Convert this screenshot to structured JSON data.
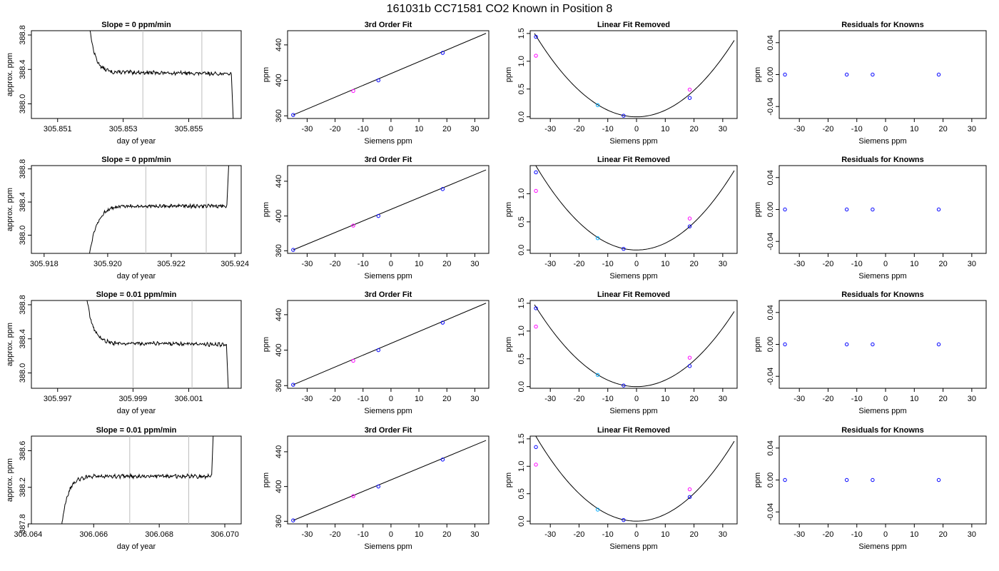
{
  "title": "161031b      CC71581    CO2 Known in Position  8",
  "chart_data": [
    {
      "type": "line",
      "panel": "timeseries",
      "title": "Slope =  0  ppm/min",
      "xlabel": "day of year",
      "ylabel": "approx. ppm",
      "xlim": [
        305.8502,
        305.8566
      ],
      "ylim": [
        387.83,
        388.85
      ],
      "xticks": [
        305.851,
        305.853,
        305.855
      ],
      "xtick_labels": [
        "305.851",
        "305.853",
        "305.855"
      ],
      "yticks": [
        388.0,
        388.4,
        388.8
      ],
      "ytick_labels": [
        "388.0",
        "388.4",
        "388.8"
      ],
      "vlines": [
        305.8536,
        305.8554
      ],
      "shape": {
        "kind": "drop",
        "x_start": 305.8519,
        "x_break": 305.8526,
        "x_end": 305.8563,
        "x_tail": 305.85637,
        "y_start": 389.2,
        "y_plateau": 388.37,
        "y_tail": 387.7,
        "slope_per_x": -6
      }
    },
    {
      "type": "line",
      "panel": "fit",
      "title": "3rd Order Fit",
      "xlabel": "Siemens ppm",
      "ylabel": "ppm",
      "xlim": [
        -37,
        35
      ],
      "ylim": [
        357,
        456
      ],
      "xticks": [
        -30,
        -20,
        -10,
        0,
        10,
        20,
        30
      ],
      "xtick_labels": [
        "-30",
        "-20",
        "-10",
        "0",
        "10",
        "20",
        "30"
      ],
      "yticks": [
        360,
        400,
        440
      ],
      "ytick_labels": [
        "360",
        "400",
        "440"
      ],
      "line": {
        "x1": -35,
        "y1": 361,
        "x2": 34,
        "y2": 453
      },
      "points": [
        {
          "x": -35,
          "y": 361,
          "color": "#0000ff"
        },
        {
          "x": -13.5,
          "y": 388,
          "color": "#ff00ff"
        },
        {
          "x": -4.5,
          "y": 400,
          "color": "#0000ff"
        },
        {
          "x": 18.5,
          "y": 431,
          "color": "#0000ff"
        }
      ]
    },
    {
      "type": "line",
      "panel": "curve",
      "title": "Linear Fit Removed",
      "xlabel": "Siemens ppm",
      "ylabel": "ppm",
      "xlim": [
        -37,
        35
      ],
      "ylim": [
        -0.03,
        1.55
      ],
      "xticks": [
        -30,
        -20,
        -10,
        0,
        10,
        20,
        30
      ],
      "xtick_labels": [
        "-30",
        "-20",
        "-10",
        "0",
        "10",
        "20",
        "30"
      ],
      "yticks": [
        0.0,
        0.5,
        1.0,
        1.5
      ],
      "ytick_labels": [
        "0.0",
        "0.5",
        "1.0",
        "1.5"
      ],
      "curve": {
        "x_min": -35.5,
        "x_max": 34,
        "a": 0.00119,
        "b": 0,
        "c": 0
      },
      "points": [
        {
          "x": -35,
          "y": 1.44,
          "color": "#0000ff"
        },
        {
          "x": -35,
          "y": 1.1,
          "color": "#ff00ff"
        },
        {
          "x": -13.5,
          "y": 0.21,
          "color": "#00aaff"
        },
        {
          "x": -4.5,
          "y": 0.02,
          "color": "#0000ff"
        },
        {
          "x": 18.5,
          "y": 0.34,
          "color": "#0000ff"
        },
        {
          "x": 18.5,
          "y": 0.49,
          "color": "#ff00ff"
        }
      ]
    },
    {
      "type": "scatter",
      "panel": "residual",
      "title": "Residuals for Knowns",
      "xlabel": "Siemens ppm",
      "ylabel": "ppm",
      "xlim": [
        -37,
        35
      ],
      "ylim": [
        -0.055,
        0.055
      ],
      "xticks": [
        -30,
        -20,
        -10,
        0,
        10,
        20,
        30
      ],
      "xtick_labels": [
        "-30",
        "-20",
        "-10",
        "0",
        "10",
        "20",
        "30"
      ],
      "yticks": [
        -0.04,
        0.0,
        0.04
      ],
      "ytick_labels": [
        "-0.04",
        "0.00",
        "0.04"
      ],
      "points": [
        {
          "x": -35,
          "y": 0,
          "color": "#0000ff"
        },
        {
          "x": -13.5,
          "y": 0,
          "color": "#0000ff"
        },
        {
          "x": -4.5,
          "y": 0,
          "color": "#0000ff"
        },
        {
          "x": 18.5,
          "y": 0,
          "color": "#0000ff"
        }
      ]
    },
    {
      "type": "line",
      "panel": "timeseries",
      "title": "Slope =  0  ppm/min",
      "xlabel": "day of year",
      "ylabel": "approx. ppm",
      "xlim": [
        305.9176,
        305.9242
      ],
      "ylim": [
        387.78,
        388.84
      ],
      "xticks": [
        305.918,
        305.92,
        305.922,
        305.924
      ],
      "xtick_labels": [
        "305.918",
        "305.920",
        "305.922",
        "305.924"
      ],
      "yticks": [
        388.0,
        388.4,
        388.8
      ],
      "ytick_labels": [
        "388.0",
        "388.4",
        "388.8"
      ],
      "vlines": [
        305.9212,
        305.9231
      ],
      "shape": {
        "kind": "rise",
        "x_start": 305.9194,
        "x_break": 305.9204,
        "x_end": 305.92375,
        "x_tail": 305.92385,
        "y_start": 387.7,
        "y_plateau": 388.35,
        "y_tail": 389.2,
        "slope_per_x": 0
      }
    },
    {
      "type": "line",
      "panel": "fit",
      "title": "3rd Order Fit",
      "xlabel": "Siemens ppm",
      "ylabel": "ppm",
      "xlim": [
        -37,
        35
      ],
      "ylim": [
        357,
        458
      ],
      "xticks": [
        -30,
        -20,
        -10,
        0,
        10,
        20,
        30
      ],
      "xtick_labels": [
        "-30",
        "-20",
        "-10",
        "0",
        "10",
        "20",
        "30"
      ],
      "yticks": [
        360,
        400,
        440
      ],
      "ytick_labels": [
        "360",
        "400",
        "440"
      ],
      "line": {
        "x1": -35,
        "y1": 361,
        "x2": 34,
        "y2": 453
      },
      "points": [
        {
          "x": -35,
          "y": 361,
          "color": "#0000ff"
        },
        {
          "x": -13.5,
          "y": 389,
          "color": "#ff00ff"
        },
        {
          "x": -4.5,
          "y": 400,
          "color": "#0000ff"
        },
        {
          "x": 18.5,
          "y": 431,
          "color": "#0000ff"
        }
      ]
    },
    {
      "type": "line",
      "panel": "curve",
      "title": "Linear Fit Removed",
      "xlabel": "Siemens ppm",
      "ylabel": "ppm",
      "xlim": [
        -37,
        35
      ],
      "ylim": [
        -0.06,
        1.5
      ],
      "xticks": [
        -30,
        -20,
        -10,
        0,
        10,
        20,
        30
      ],
      "xtick_labels": [
        "-30",
        "-20",
        "-10",
        "0",
        "10",
        "20",
        "30"
      ],
      "yticks": [
        0.0,
        0.5,
        1.0
      ],
      "ytick_labels": [
        "0.0",
        "0.5",
        "1.0"
      ],
      "curve": {
        "x_min": -35.5,
        "x_max": 34,
        "a": 0.00122,
        "b": 0,
        "c": 0
      },
      "points": [
        {
          "x": -35,
          "y": 1.38,
          "color": "#0000ff"
        },
        {
          "x": -35,
          "y": 1.05,
          "color": "#ff00ff"
        },
        {
          "x": -13.5,
          "y": 0.21,
          "color": "#00aaff"
        },
        {
          "x": -4.5,
          "y": 0.02,
          "color": "#0000ff"
        },
        {
          "x": 18.5,
          "y": 0.42,
          "color": "#0000ff"
        },
        {
          "x": 18.5,
          "y": 0.56,
          "color": "#ff00ff"
        }
      ]
    },
    {
      "type": "scatter",
      "panel": "residual",
      "title": "Residuals for Knowns",
      "xlabel": "Siemens ppm",
      "ylabel": "ppm",
      "xlim": [
        -37,
        35
      ],
      "ylim": [
        -0.055,
        0.055
      ],
      "xticks": [
        -30,
        -20,
        -10,
        0,
        10,
        20,
        30
      ],
      "xtick_labels": [
        "-30",
        "-20",
        "-10",
        "0",
        "10",
        "20",
        "30"
      ],
      "yticks": [
        -0.04,
        0.0,
        0.04
      ],
      "ytick_labels": [
        "-0.04",
        "0.00",
        "0.04"
      ],
      "points": [
        {
          "x": -35,
          "y": 0,
          "color": "#0000ff"
        },
        {
          "x": -13.5,
          "y": 0,
          "color": "#0000ff"
        },
        {
          "x": -4.5,
          "y": 0,
          "color": "#0000ff"
        },
        {
          "x": 18.5,
          "y": 0,
          "color": "#0000ff"
        }
      ]
    },
    {
      "type": "line",
      "panel": "timeseries",
      "title": "Slope =  0.01  ppm/min",
      "xlabel": "day of year",
      "ylabel": "approx. ppm",
      "xlim": [
        305.9962,
        306.0026
      ],
      "ylim": [
        387.82,
        388.85
      ],
      "xticks": [
        305.997,
        305.9993,
        306.001
      ],
      "xtick_labels": [
        "305.997",
        "305.999",
        "306.001"
      ],
      "vlines": [
        305.9993,
        306.0011
      ],
      "yticks": [
        388.0,
        388.4,
        388.8
      ],
      "ytick_labels": [
        "388.0",
        "388.4",
        "388.8"
      ],
      "shape": {
        "kind": "drop",
        "x_start": 305.9978,
        "x_break": 305.9986,
        "x_end": 306.00215,
        "x_tail": 306.00222,
        "y_start": 389.2,
        "y_plateau": 388.35,
        "y_tail": 387.7,
        "slope_per_x": -5
      }
    },
    {
      "type": "line",
      "panel": "fit",
      "title": "3rd Order Fit",
      "xlabel": "Siemens ppm",
      "ylabel": "ppm",
      "xlim": [
        -37,
        35
      ],
      "ylim": [
        357,
        456
      ],
      "xticks": [
        -30,
        -20,
        -10,
        0,
        10,
        20,
        30
      ],
      "xtick_labels": [
        "-30",
        "-20",
        "-10",
        "0",
        "10",
        "20",
        "30"
      ],
      "yticks": [
        360,
        400,
        440
      ],
      "ytick_labels": [
        "360",
        "400",
        "440"
      ],
      "line": {
        "x1": -35,
        "y1": 361,
        "x2": 34,
        "y2": 453
      },
      "points": [
        {
          "x": -35,
          "y": 361,
          "color": "#0000ff"
        },
        {
          "x": -13.5,
          "y": 388,
          "color": "#ff00ff"
        },
        {
          "x": -4.5,
          "y": 400,
          "color": "#0000ff"
        },
        {
          "x": 18.5,
          "y": 431,
          "color": "#0000ff"
        }
      ]
    },
    {
      "type": "line",
      "panel": "curve",
      "title": "Linear Fit Removed",
      "xlabel": "Siemens ppm",
      "ylabel": "ppm",
      "xlim": [
        -37,
        35
      ],
      "ylim": [
        -0.03,
        1.55
      ],
      "xticks": [
        -30,
        -20,
        -10,
        0,
        10,
        20,
        30
      ],
      "xtick_labels": [
        "-30",
        "-20",
        "-10",
        "0",
        "10",
        "20",
        "30"
      ],
      "yticks": [
        0.0,
        0.5,
        1.0,
        1.5
      ],
      "ytick_labels": [
        "0.0",
        "0.5",
        "1.0",
        "1.5"
      ],
      "curve": {
        "x_min": -35.5,
        "x_max": 34,
        "a": 0.00117,
        "b": 0,
        "c": 0
      },
      "points": [
        {
          "x": -35,
          "y": 1.41,
          "color": "#0000ff"
        },
        {
          "x": -35,
          "y": 1.08,
          "color": "#ff00ff"
        },
        {
          "x": -13.5,
          "y": 0.21,
          "color": "#00aaff"
        },
        {
          "x": -4.5,
          "y": 0.02,
          "color": "#0000ff"
        },
        {
          "x": 18.5,
          "y": 0.37,
          "color": "#0000ff"
        },
        {
          "x": 18.5,
          "y": 0.52,
          "color": "#ff00ff"
        }
      ]
    },
    {
      "type": "scatter",
      "panel": "residual",
      "title": "Residuals for Knowns",
      "xlabel": "Siemens ppm",
      "ylabel": "ppm",
      "xlim": [
        -37,
        35
      ],
      "ylim": [
        -0.055,
        0.055
      ],
      "xticks": [
        -30,
        -20,
        -10,
        0,
        10,
        20,
        30
      ],
      "xtick_labels": [
        "-30",
        "-20",
        "-10",
        "0",
        "10",
        "20",
        "30"
      ],
      "yticks": [
        -0.04,
        0.0,
        0.04
      ],
      "ytick_labels": [
        "-0.04",
        "0.00",
        "0.04"
      ],
      "points": [
        {
          "x": -35,
          "y": 0,
          "color": "#0000ff"
        },
        {
          "x": -13.5,
          "y": 0,
          "color": "#0000ff"
        },
        {
          "x": -4.5,
          "y": 0,
          "color": "#0000ff"
        },
        {
          "x": 18.5,
          "y": 0,
          "color": "#0000ff"
        }
      ]
    },
    {
      "type": "line",
      "panel": "timeseries",
      "title": "Slope =  0.01  ppm/min",
      "xlabel": "day of year",
      "ylabel": "approx. ppm",
      "xlim": [
        306.0641,
        306.0705
      ],
      "ylim": [
        387.8,
        388.76
      ],
      "xticks": [
        306.064,
        306.066,
        306.068,
        306.07
      ],
      "xtick_labels": [
        "306.064",
        "306.066",
        "306.068",
        "306.070"
      ],
      "yticks": [
        387.8,
        388.2,
        388.6
      ],
      "ytick_labels": [
        "387.8",
        "388.2",
        "388.6"
      ],
      "vlines": [
        306.0671,
        306.0689
      ],
      "shape": {
        "kind": "rise",
        "x_start": 306.065,
        "x_break": 306.0658,
        "x_end": 306.0696,
        "x_tail": 306.06968,
        "y_start": 387.7,
        "y_plateau": 388.32,
        "y_tail": 389.1,
        "slope_per_x": 0
      }
    },
    {
      "type": "line",
      "panel": "fit",
      "title": "3rd Order Fit",
      "xlabel": "Siemens ppm",
      "ylabel": "ppm",
      "xlim": [
        -37,
        35
      ],
      "ylim": [
        357,
        458
      ],
      "xticks": [
        -30,
        -20,
        -10,
        0,
        10,
        20,
        30
      ],
      "xtick_labels": [
        "-30",
        "-20",
        "-10",
        "0",
        "10",
        "20",
        "30"
      ],
      "yticks": [
        360,
        400,
        440
      ],
      "ytick_labels": [
        "360",
        "400",
        "440"
      ],
      "line": {
        "x1": -35,
        "y1": 361,
        "x2": 34,
        "y2": 453
      },
      "points": [
        {
          "x": -35,
          "y": 361,
          "color": "#0000ff"
        },
        {
          "x": -13.5,
          "y": 389,
          "color": "#ff00ff"
        },
        {
          "x": -4.5,
          "y": 400,
          "color": "#0000ff"
        },
        {
          "x": 18.5,
          "y": 431,
          "color": "#0000ff"
        }
      ]
    },
    {
      "type": "line",
      "panel": "curve",
      "title": "Linear Fit Removed",
      "xlabel": "Siemens ppm",
      "ylabel": "ppm",
      "xlim": [
        -37,
        35
      ],
      "ylim": [
        -0.05,
        1.55
      ],
      "xticks": [
        -30,
        -20,
        -10,
        0,
        10,
        20,
        30
      ],
      "xtick_labels": [
        "-30",
        "-20",
        "-10",
        "0",
        "10",
        "20",
        "30"
      ],
      "yticks": [
        0.0,
        0.5,
        1.0,
        1.5
      ],
      "ytick_labels": [
        "0.0",
        "0.5",
        "1.0",
        "1.5"
      ],
      "curve": {
        "x_min": -35.5,
        "x_max": 34,
        "a": 0.00126,
        "b": 0,
        "c": 0
      },
      "points": [
        {
          "x": -35,
          "y": 1.35,
          "color": "#0000ff"
        },
        {
          "x": -35,
          "y": 1.03,
          "color": "#ff00ff"
        },
        {
          "x": -13.5,
          "y": 0.21,
          "color": "#00aaff"
        },
        {
          "x": -4.5,
          "y": 0.02,
          "color": "#0000ff"
        },
        {
          "x": 18.5,
          "y": 0.44,
          "color": "#0000ff"
        },
        {
          "x": 18.5,
          "y": 0.58,
          "color": "#ff00ff"
        }
      ]
    },
    {
      "type": "scatter",
      "panel": "residual",
      "title": "Residuals for Knowns",
      "xlabel": "Siemens ppm",
      "ylabel": "ppm",
      "xlim": [
        -37,
        35
      ],
      "ylim": [
        -0.055,
        0.055
      ],
      "xticks": [
        -30,
        -20,
        -10,
        0,
        10,
        20,
        30
      ],
      "xtick_labels": [
        "-30",
        "-20",
        "-10",
        "0",
        "10",
        "20",
        "30"
      ],
      "yticks": [
        -0.04,
        0.0,
        0.04
      ],
      "ytick_labels": [
        "-0.04",
        "0.00",
        "0.04"
      ],
      "points": [
        {
          "x": -35,
          "y": 0,
          "color": "#0000ff"
        },
        {
          "x": -13.5,
          "y": 0,
          "color": "#0000ff"
        },
        {
          "x": -4.5,
          "y": 0,
          "color": "#0000ff"
        },
        {
          "x": 18.5,
          "y": 0,
          "color": "#0000ff"
        }
      ]
    }
  ]
}
